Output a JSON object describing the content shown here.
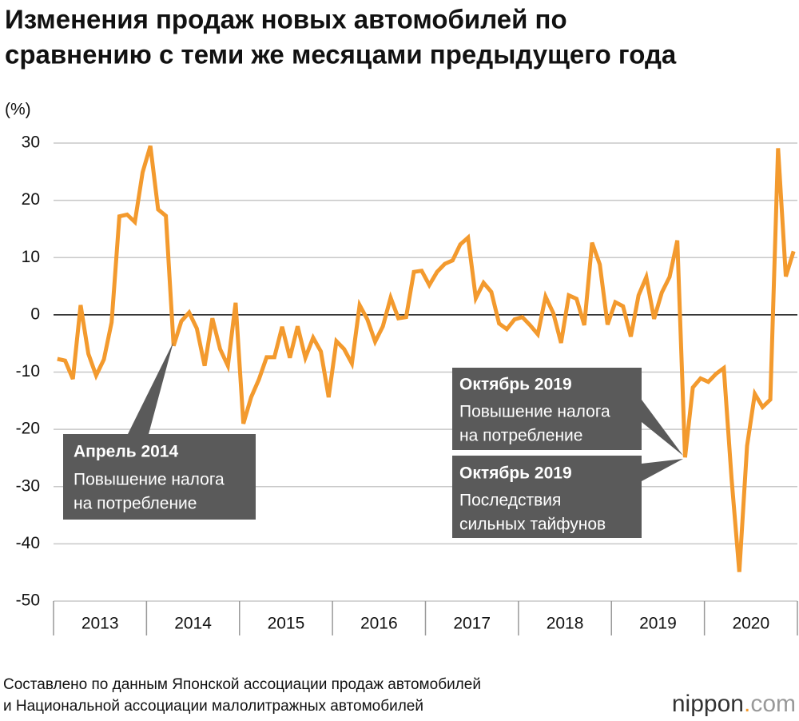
{
  "chart_data": {
    "type": "line",
    "title": [
      "Изменения продаж новых автомобилей по",
      "сравнению с теми же месяцами предыдущего года"
    ],
    "y_label": "(%)",
    "categories": [
      "2013",
      null,
      null,
      null,
      null,
      null,
      null,
      null,
      null,
      null,
      null,
      null,
      "2014",
      null,
      null,
      null,
      null,
      null,
      null,
      null,
      null,
      null,
      null,
      null,
      "2015",
      null,
      null,
      null,
      null,
      null,
      null,
      null,
      null,
      null,
      null,
      null,
      "2016",
      null,
      null,
      null,
      null,
      null,
      null,
      null,
      null,
      null,
      null,
      null,
      "2017",
      null,
      null,
      null,
      null,
      null,
      null,
      null,
      null,
      null,
      null,
      null,
      "2018",
      null,
      null,
      null,
      null,
      null,
      null,
      null,
      null,
      null,
      null,
      null,
      "2019",
      null,
      null,
      null,
      null,
      null,
      null,
      null,
      null,
      null,
      null,
      null,
      "2020",
      null,
      null,
      null,
      null,
      null,
      null,
      null,
      null,
      null,
      null,
      null
    ],
    "series": [
      {
        "name": "Продажи новых автомобилей",
        "color": "#f39a2e",
        "values": [
          -7.7,
          -8,
          -11.2,
          1.7,
          -6.8,
          -10.6,
          -7.8,
          -1.3,
          17.2,
          17.5,
          16.2,
          24.9,
          29.5,
          18.4,
          17.3,
          -5.4,
          -1.1,
          0.4,
          -2.4,
          -8.9,
          -0.6,
          -6,
          -8.9,
          2.1,
          -19,
          -14.4,
          -11.3,
          -7.4,
          -7.4,
          -2.1,
          -7.5,
          -2,
          -7.5,
          -4,
          -6.4,
          -14.4,
          -4.6,
          -6,
          -8.5,
          1.7,
          -0.8,
          -4.7,
          -2,
          3,
          -0.6,
          -0.4,
          7.5,
          7.7,
          5.2,
          7.5,
          8.9,
          9.5,
          12.3,
          13.5,
          2.9,
          5.6,
          4,
          -1.5,
          -2.5,
          -0.8,
          -0.4,
          -1.8,
          -3.4,
          3.2,
          0.3,
          -4.9,
          3.4,
          2.8,
          -1.8,
          12.6,
          8.8,
          -1.7,
          2.2,
          1.5,
          -3.8,
          3.4,
          6.6,
          -0.7,
          3.9,
          6.6,
          13,
          -24.9,
          -12.7,
          -11.1,
          -11.7,
          -10.3,
          -9.3,
          -28.6,
          -44.9,
          -22.9,
          -13.8,
          -16.1,
          -14.8,
          29.1,
          6.7,
          11.1
        ]
      }
    ],
    "ylim": [
      -50,
      30
    ],
    "yticks": [
      -50,
      -40,
      -30,
      -20,
      -10,
      0,
      10,
      20,
      30
    ],
    "grid": true,
    "annotations": [
      {
        "title": "Апрель 2014",
        "text": [
          "Повышение налога",
          "на потребление"
        ]
      },
      {
        "title": "Октябрь 2019",
        "text": [
          "Повышение налога",
          "на потребление"
        ]
      },
      {
        "title": "Октябрь 2019",
        "text": [
          "Последствия",
          "сильных тайфунов"
        ]
      }
    ],
    "source": [
      "Составлено по данным Японской ассоциации продаж автомобилей",
      "и Национальной ассоциации малолитражных автомобилей"
    ],
    "logo": [
      "nippon",
      ".",
      "com"
    ]
  }
}
